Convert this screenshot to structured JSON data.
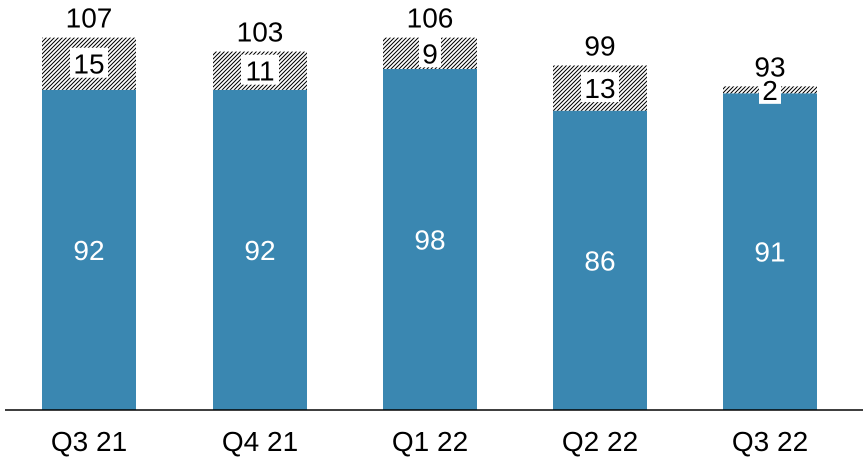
{
  "chart_data": {
    "type": "bar",
    "stacked": true,
    "categories": [
      "Q3 21",
      "Q4 21",
      "Q1 22",
      "Q2 22",
      "Q3 22"
    ],
    "series": [
      {
        "values": [
          92,
          92,
          98,
          86,
          91
        ],
        "color": "#3a87b1",
        "label_color": "#ffffff"
      },
      {
        "values": [
          15,
          11,
          9,
          13,
          2
        ],
        "color": "#000000",
        "pattern": "diagonal-hatch",
        "label_color": "#000000"
      }
    ],
    "totals": [
      107,
      103,
      106,
      99,
      93
    ],
    "ylim": [
      0,
      115
    ],
    "grid": false,
    "legend": "none"
  }
}
